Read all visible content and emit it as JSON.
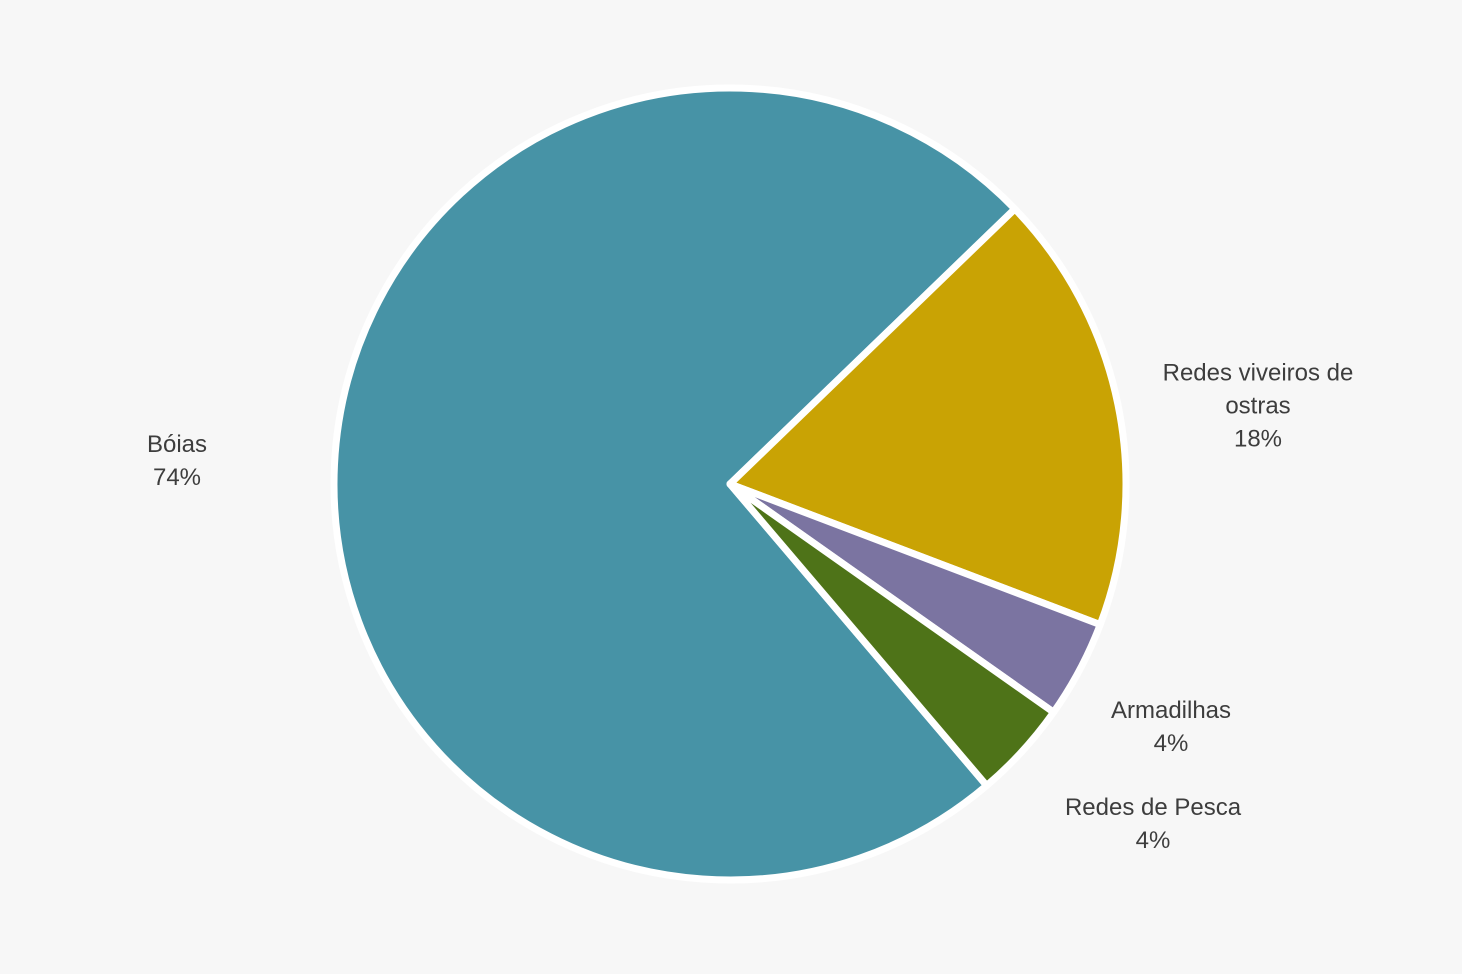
{
  "page": {
    "background_color": "#f7f7f7",
    "text_color": "#3d3d3d"
  },
  "chart_data": {
    "type": "pie",
    "title": "",
    "legend": "none",
    "labels_position": "outside",
    "start_angle_deg_clockwise_from_3oclock": 49.6,
    "slice_gap_stroke": {
      "color": "#ffffff",
      "width": 7
    },
    "segments": [
      {
        "label": "Bóias",
        "value": 74,
        "color": "#4793a6"
      },
      {
        "label": "Redes viveiros de ostras",
        "value": 18,
        "color": "#c9a304"
      },
      {
        "label": "Armadilhas",
        "value": 4,
        "color": "#7b74a1"
      },
      {
        "label": "Redes de Pesca",
        "value": 4,
        "color": "#4e7318"
      }
    ]
  },
  "labels": {
    "boias": {
      "lines": [
        "Bóias",
        "74%"
      ]
    },
    "redes_viveiros": {
      "lines": [
        "Redes viveiros de",
        "ostras",
        "18%"
      ]
    },
    "armadilhas": {
      "lines": [
        "Armadilhas",
        "4%"
      ]
    },
    "redes_pesca": {
      "lines": [
        "Redes de Pesca",
        "4%"
      ]
    }
  }
}
